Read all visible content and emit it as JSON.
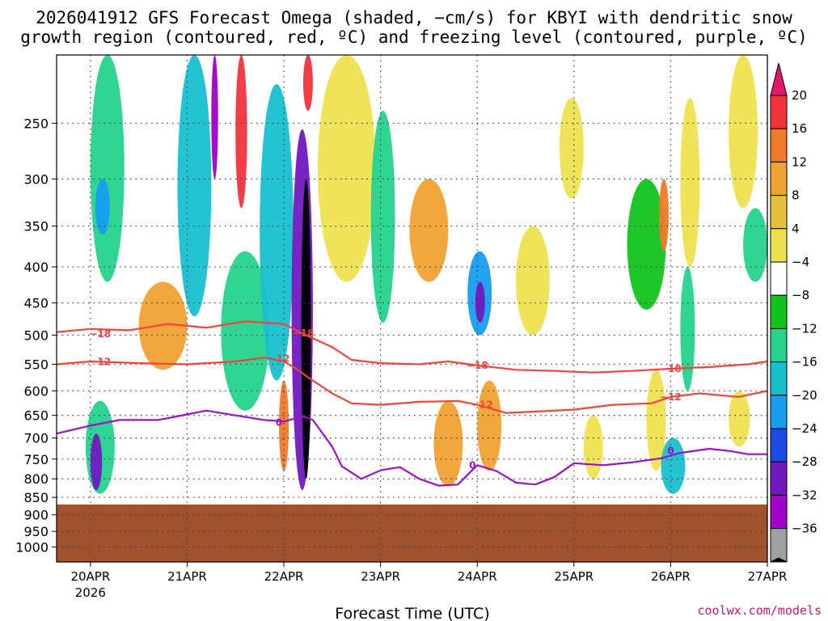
{
  "chart_data": {
    "type": "time-height cross section (shaded + contoured)",
    "title_line1": "2026041912 GFS Forecast Omega (shaded, −cm/s) for KBYI with dendritic snow",
    "title_line2": "growth region (contoured, red, ºC) and freezing level (contoured, purple, ºC)",
    "xlabel": "Forecast Time (UTC)",
    "ylabel": "",
    "x_ticks": [
      {
        "day": 0,
        "label": "20APR",
        "sub": "2026"
      },
      {
        "day": 1,
        "label": "21APR",
        "sub": ""
      },
      {
        "day": 2,
        "label": "22APR",
        "sub": ""
      },
      {
        "day": 3,
        "label": "23APR",
        "sub": ""
      },
      {
        "day": 4,
        "label": "24APR",
        "sub": ""
      },
      {
        "day": 5,
        "label": "25APR",
        "sub": ""
      },
      {
        "day": 6,
        "label": "26APR",
        "sub": ""
      },
      {
        "day": 7,
        "label": "27APR",
        "sub": ""
      }
    ],
    "x_range_days": [
      -0.35,
      7.0
    ],
    "y_range_hpa": [
      200,
      1050
    ],
    "y_ticks": [
      250,
      300,
      350,
      400,
      450,
      500,
      550,
      600,
      650,
      700,
      750,
      800,
      850,
      900,
      950,
      1000
    ],
    "y_scale": "reversed, pressure (hPa)",
    "grid": "dotted, at tick levels",
    "terrain_top_hpa": 870,
    "colorbar": {
      "labels": [
        "20",
        "16",
        "12",
        "8",
        "4",
        "−4",
        "−8",
        "−12",
        "−16",
        "−20",
        "−24",
        "−28",
        "−32",
        "−36"
      ],
      "colors": [
        "#e4186a",
        "#f0343c",
        "#f07a2a",
        "#f0a232",
        "#e6c03c",
        "#eee150",
        "#ffffff",
        "#12c31e",
        "#25d38d",
        "#18c0cf",
        "#169ef0",
        "#1e4ae6",
        "#7119c0",
        "#a000c8",
        "#a0a0a0",
        "#000000"
      ]
    },
    "dgz_contours": [
      {
        "label": "−18",
        "label_points": [
          [
            0.1,
            498
          ],
          [
            2.2,
            497
          ],
          [
            4.0,
            552
          ],
          [
            6.0,
            558
          ]
        ],
        "points": [
          [
            -0.35,
            495
          ],
          [
            0,
            490
          ],
          [
            0.4,
            492
          ],
          [
            0.8,
            482
          ],
          [
            1.2,
            488
          ],
          [
            1.6,
            478
          ],
          [
            2.0,
            482
          ],
          [
            2.2,
            498
          ],
          [
            2.5,
            520
          ],
          [
            2.7,
            542
          ],
          [
            3.0,
            548
          ],
          [
            3.4,
            550
          ],
          [
            3.7,
            545
          ],
          [
            4.0,
            552
          ],
          [
            4.4,
            560
          ],
          [
            4.8,
            562
          ],
          [
            5.2,
            565
          ],
          [
            5.6,
            562
          ],
          [
            6.0,
            558
          ],
          [
            6.4,
            555
          ],
          [
            6.8,
            550
          ],
          [
            7.0,
            545
          ]
        ]
      },
      {
        "label": "−12",
        "label_points": [
          [
            0.1,
            546
          ],
          [
            1.95,
            540
          ],
          [
            4.05,
            628
          ],
          [
            6.0,
            612
          ]
        ],
        "points": [
          [
            -0.35,
            550
          ],
          [
            0,
            545
          ],
          [
            0.5,
            548
          ],
          [
            1.0,
            550
          ],
          [
            1.5,
            545
          ],
          [
            1.8,
            538
          ],
          [
            2.0,
            545
          ],
          [
            2.1,
            555
          ],
          [
            2.3,
            580
          ],
          [
            2.5,
            605
          ],
          [
            2.7,
            625
          ],
          [
            3.0,
            628
          ],
          [
            3.4,
            622
          ],
          [
            3.8,
            620
          ],
          [
            4.0,
            628
          ],
          [
            4.3,
            645
          ],
          [
            4.6,
            642
          ],
          [
            5.0,
            638
          ],
          [
            5.4,
            628
          ],
          [
            5.8,
            625
          ],
          [
            6.0,
            612
          ],
          [
            6.3,
            605
          ],
          [
            6.7,
            612
          ],
          [
            7.0,
            600
          ]
        ]
      }
    ],
    "freezing_level": {
      "label": "0",
      "label_points": [
        [
          1.95,
          665
        ],
        [
          3.95,
          765
        ],
        [
          6.0,
          730
        ]
      ],
      "points": [
        [
          -0.35,
          690
        ],
        [
          0,
          672
        ],
        [
          0.3,
          660
        ],
        [
          0.7,
          660
        ],
        [
          1.0,
          648
        ],
        [
          1.2,
          640
        ],
        [
          1.5,
          650
        ],
        [
          1.8,
          660
        ],
        [
          2.0,
          663
        ],
        [
          2.2,
          652
        ],
        [
          2.3,
          660
        ],
        [
          2.5,
          720
        ],
        [
          2.6,
          768
        ],
        [
          2.8,
          800
        ],
        [
          3.0,
          778
        ],
        [
          3.2,
          770
        ],
        [
          3.4,
          800
        ],
        [
          3.6,
          818
        ],
        [
          3.8,
          815
        ],
        [
          4.0,
          765
        ],
        [
          4.2,
          780
        ],
        [
          4.4,
          810
        ],
        [
          4.6,
          815
        ],
        [
          4.8,
          795
        ],
        [
          5.0,
          760
        ],
        [
          5.3,
          765
        ],
        [
          5.6,
          758
        ],
        [
          5.9,
          748
        ],
        [
          6.1,
          735
        ],
        [
          6.4,
          725
        ],
        [
          6.6,
          730
        ],
        [
          6.8,
          738
        ],
        [
          7.0,
          738
        ]
      ]
    },
    "omega_regions_note": "approximate shaded blobs, values in −cm/s",
    "omega_regions": [
      {
        "d0": -0.05,
        "d1": 0.25,
        "p0": 620,
        "p1": 840,
        "v": -10
      },
      {
        "d0": 0.0,
        "d1": 0.12,
        "p0": 690,
        "p1": 830,
        "v": -24
      },
      {
        "d0": 0.0,
        "d1": 0.35,
        "p0": 200,
        "p1": 420,
        "v": -8
      },
      {
        "d0": 0.05,
        "d1": 0.2,
        "p0": 300,
        "p1": 360,
        "v": -16
      },
      {
        "d0": 0.5,
        "d1": 1.0,
        "p0": 420,
        "p1": 560,
        "v": 8
      },
      {
        "d0": 0.9,
        "d1": 1.25,
        "p0": 200,
        "p1": 470,
        "v": -12
      },
      {
        "d0": 1.25,
        "d1": 1.32,
        "p0": 200,
        "p1": 300,
        "v": -28
      },
      {
        "d0": 1.5,
        "d1": 1.62,
        "p0": 200,
        "p1": 330,
        "v": 16
      },
      {
        "d0": 1.35,
        "d1": 1.85,
        "p0": 380,
        "p1": 640,
        "v": -8
      },
      {
        "d0": 1.75,
        "d1": 2.1,
        "p0": 220,
        "p1": 580,
        "v": -12
      },
      {
        "d0": 1.95,
        "d1": 2.05,
        "p0": 580,
        "p1": 780,
        "v": 12
      },
      {
        "d0": 2.08,
        "d1": 2.3,
        "p0": 255,
        "p1": 830,
        "v": -24
      },
      {
        "d0": 2.18,
        "d1": 2.28,
        "p0": 300,
        "p1": 800,
        "v": -36
      },
      {
        "d0": 2.2,
        "d1": 2.3,
        "p0": 200,
        "p1": 240,
        "v": 16
      },
      {
        "d0": 2.35,
        "d1": 2.95,
        "p0": 200,
        "p1": 420,
        "v": 6
      },
      {
        "d0": 2.9,
        "d1": 3.15,
        "p0": 240,
        "p1": 480,
        "v": -8
      },
      {
        "d0": 3.3,
        "d1": 3.7,
        "p0": 300,
        "p1": 420,
        "v": 10
      },
      {
        "d0": 3.55,
        "d1": 3.85,
        "p0": 620,
        "p1": 820,
        "v": 8
      },
      {
        "d0": 3.9,
        "d1": 4.15,
        "p0": 380,
        "p1": 500,
        "v": -16
      },
      {
        "d0": 3.98,
        "d1": 4.08,
        "p0": 420,
        "p1": 480,
        "v": -24
      },
      {
        "d0": 4.0,
        "d1": 4.25,
        "p0": 580,
        "p1": 780,
        "v": 10
      },
      {
        "d0": 4.4,
        "d1": 4.75,
        "p0": 350,
        "p1": 500,
        "v": 6
      },
      {
        "d0": 4.85,
        "d1": 5.1,
        "p0": 230,
        "p1": 320,
        "v": 6
      },
      {
        "d0": 5.1,
        "d1": 5.3,
        "p0": 650,
        "p1": 800,
        "v": 6
      },
      {
        "d0": 5.55,
        "d1": 5.95,
        "p0": 300,
        "p1": 460,
        "v": -6
      },
      {
        "d0": 5.75,
        "d1": 5.95,
        "p0": 560,
        "p1": 780,
        "v": 6
      },
      {
        "d0": 5.88,
        "d1": 5.98,
        "p0": 300,
        "p1": 380,
        "v": 12
      },
      {
        "d0": 5.9,
        "d1": 6.15,
        "p0": 700,
        "p1": 840,
        "v": -14
      },
      {
        "d0": 6.1,
        "d1": 6.3,
        "p0": 230,
        "p1": 400,
        "v": 6
      },
      {
        "d0": 6.1,
        "d1": 6.25,
        "p0": 400,
        "p1": 600,
        "v": -10
      },
      {
        "d0": 6.6,
        "d1": 6.9,
        "p0": 200,
        "p1": 330,
        "v": 6
      },
      {
        "d0": 6.75,
        "d1": 7.0,
        "p0": 330,
        "p1": 420,
        "v": -8
      },
      {
        "d0": 6.6,
        "d1": 6.82,
        "p0": 600,
        "p1": 720,
        "v": 6
      }
    ]
  },
  "credit": "coolwx.com/models"
}
